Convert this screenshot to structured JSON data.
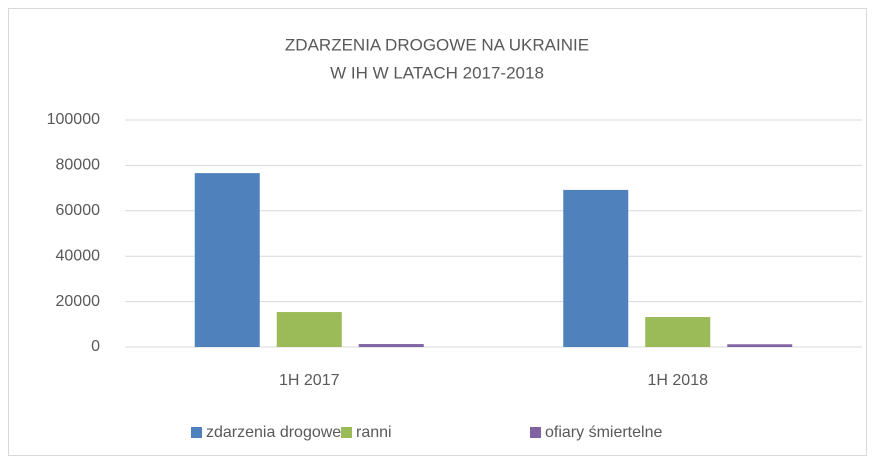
{
  "chart_data": {
    "type": "bar",
    "title": [
      "ZDARZENIA DROGOWE NA UKRAINIE",
      "W IH W LATACH 2017-2018"
    ],
    "categories": [
      "1H 2017",
      "1H 2018"
    ],
    "series": [
      {
        "name": "zdarzenia drogowe",
        "color": "#4f81bd",
        "values": [
          76600,
          69200
        ]
      },
      {
        "name": "ranni",
        "color": "#9bbb59",
        "values": [
          15400,
          13200
        ]
      },
      {
        "name": "ofiary  śmiertelne",
        "color": "#8064a2",
        "values": [
          1300,
          1200
        ]
      }
    ],
    "ylim": [
      0,
      100000
    ],
    "yticks": [
      0,
      20000,
      40000,
      60000,
      80000,
      100000
    ],
    "grid": true
  }
}
